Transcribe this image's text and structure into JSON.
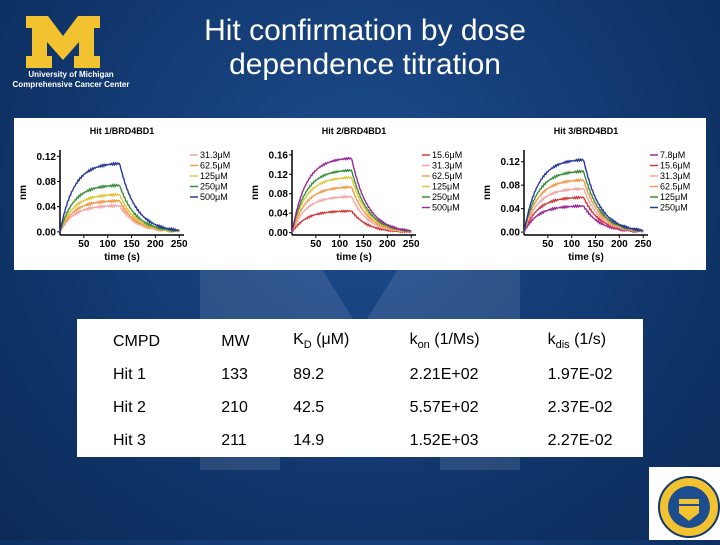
{
  "logo": {
    "line1": "University of Michigan",
    "line2": "Comprehensive Cancer Center",
    "color": "#f2c230"
  },
  "title": {
    "line1": "Hit confirmation by dose",
    "line2": "dependence titration"
  },
  "chart_data": [
    {
      "type": "line",
      "title": "Hit 1/BRD4BD1",
      "xlabel": "time (s)",
      "ylabel": "nm",
      "xticks": [
        50,
        100,
        150,
        200,
        250
      ],
      "yticks": [
        "0.00",
        "0.04",
        "0.08",
        "0.12"
      ],
      "xlim": [
        0,
        260
      ],
      "ylim": [
        -0.005,
        0.13
      ],
      "assoc_end": 125,
      "series": [
        {
          "name": "31.3μM",
          "color": "#f3a6a6",
          "plateau": 0.042
        },
        {
          "name": "62.5μM",
          "color": "#f39a4a",
          "plateau": 0.05
        },
        {
          "name": "125μM",
          "color": "#e2c63a",
          "plateau": 0.06
        },
        {
          "name": "250μM",
          "color": "#3d8f3d",
          "plateau": 0.075
        },
        {
          "name": "500μM",
          "color": "#2a3a9a",
          "plateau": 0.11
        }
      ]
    },
    {
      "type": "line",
      "title": "Hit 2/BRD4BD1",
      "xlabel": "time (s)",
      "ylabel": "nm",
      "xticks": [
        50,
        100,
        150,
        200,
        250
      ],
      "yticks": [
        "0.00",
        "0.04",
        "0.08",
        "0.12",
        "0.16"
      ],
      "xlim": [
        0,
        260
      ],
      "ylim": [
        -0.005,
        0.17
      ],
      "assoc_end": 125,
      "series": [
        {
          "name": "15.6μM",
          "color": "#d23a3a",
          "plateau": 0.045
        },
        {
          "name": "31.3μM",
          "color": "#f3a6a6",
          "plateau": 0.075
        },
        {
          "name": "62.5μM",
          "color": "#f39a4a",
          "plateau": 0.095
        },
        {
          "name": "125μM",
          "color": "#e2c63a",
          "plateau": 0.115
        },
        {
          "name": "250μM",
          "color": "#3d8f3d",
          "plateau": 0.13
        },
        {
          "name": "500μM",
          "color": "#9a2a9a",
          "plateau": 0.155
        }
      ]
    },
    {
      "type": "line",
      "title": "Hit 3/BRD4BD1",
      "xlabel": "time (s)",
      "ylabel": "nm",
      "xticks": [
        50,
        100,
        150,
        200,
        250
      ],
      "yticks": [
        "0.00",
        "0.04",
        "0.08",
        "0.12"
      ],
      "xlim": [
        0,
        260
      ],
      "ylim": [
        -0.005,
        0.14
      ],
      "assoc_end": 125,
      "series": [
        {
          "name": "7.8μM",
          "color": "#9a2a9a",
          "plateau": 0.045
        },
        {
          "name": "15.6μM",
          "color": "#d23a3a",
          "plateau": 0.06
        },
        {
          "name": "31.3μM",
          "color": "#f3a6a6",
          "plateau": 0.075
        },
        {
          "name": "62.5μM",
          "color": "#f39a4a",
          "plateau": 0.09
        },
        {
          "name": "125μM",
          "color": "#3d8f3d",
          "plateau": 0.105
        },
        {
          "name": "250μM",
          "color": "#2a3a9a",
          "plateau": 0.125
        }
      ]
    }
  ],
  "table": {
    "headers": [
      {
        "main": "CMPD",
        "sub": "",
        "rest": ""
      },
      {
        "main": "MW",
        "sub": "",
        "rest": ""
      },
      {
        "main": "K",
        "sub": "D",
        "rest": " (μM)"
      },
      {
        "main": "k",
        "sub": "on",
        "rest": " (1/Ms)"
      },
      {
        "main": "k",
        "sub": "dis",
        "rest": " (1/s)"
      }
    ],
    "rows": [
      [
        "Hit 1",
        "133",
        "89.2",
        "2.21E+02",
        "1.97E-02"
      ],
      [
        "Hit 2",
        "210",
        "42.5",
        "5.57E+02",
        "2.37E-02"
      ],
      [
        "Hit 3",
        "211",
        "14.9",
        "1.52E+03",
        "2.27E-02"
      ]
    ]
  }
}
